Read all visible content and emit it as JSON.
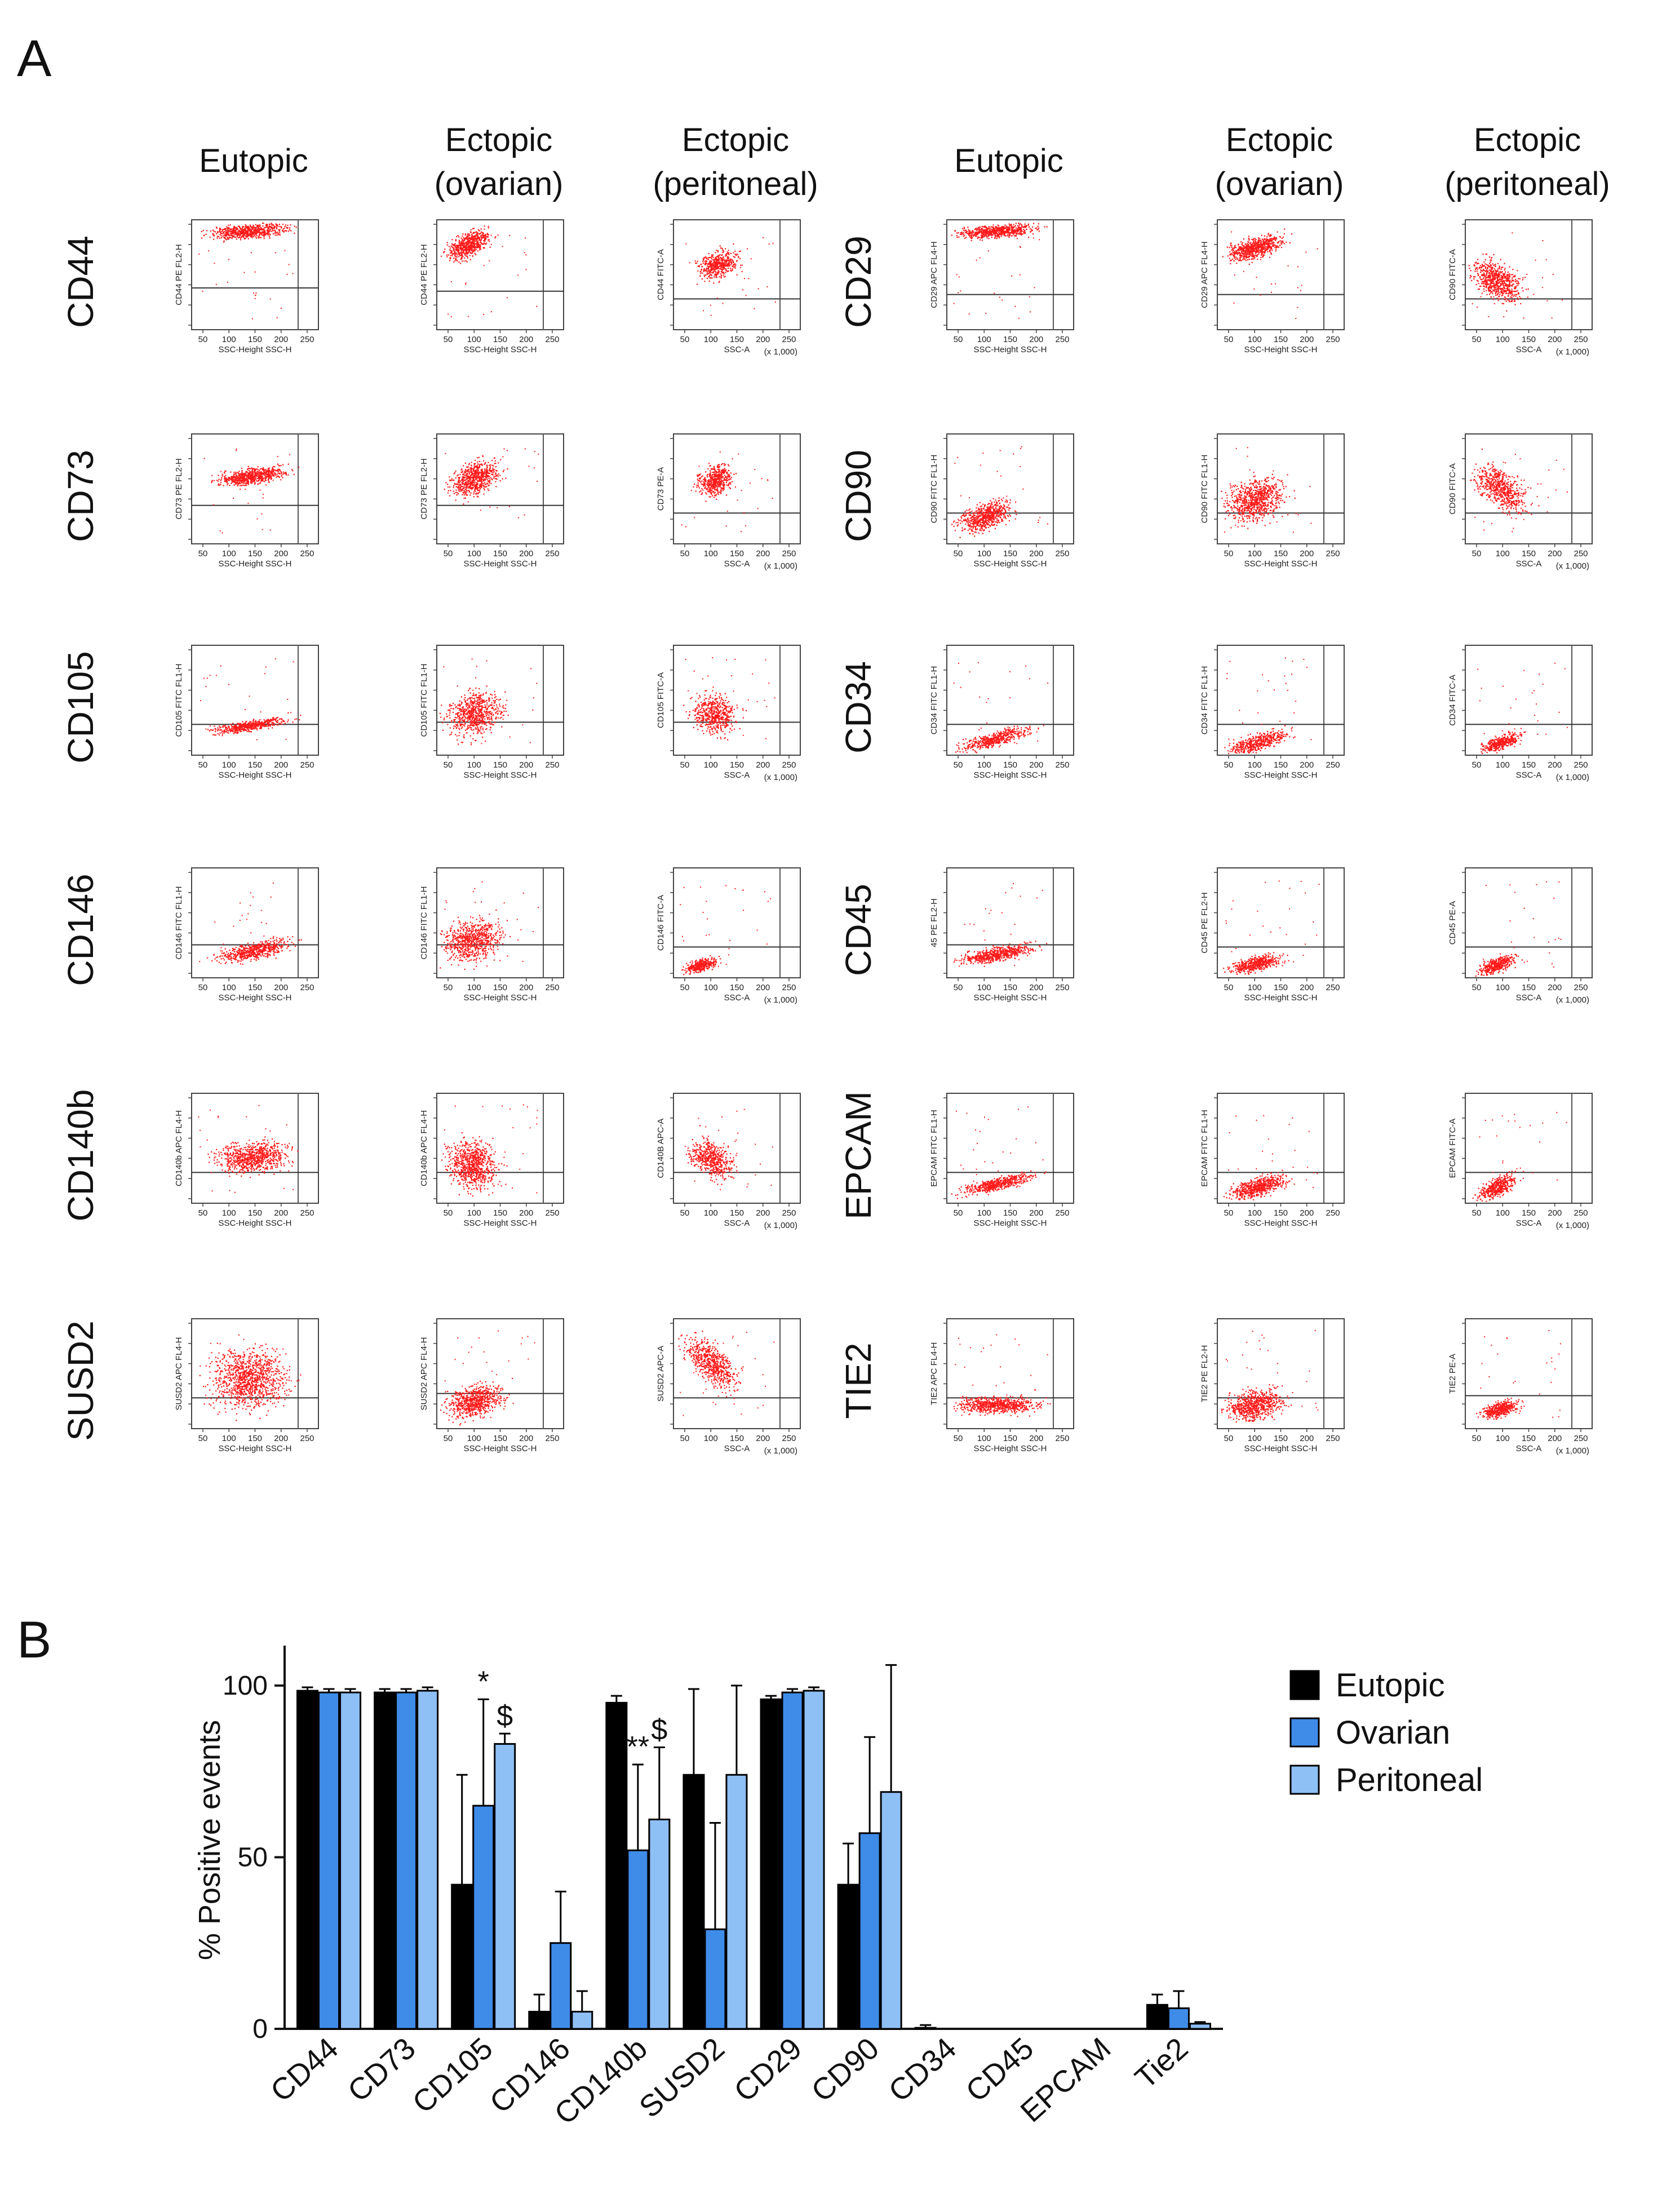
{
  "panelA": {
    "letter": "A",
    "column_headers": [
      [
        "Eutopic"
      ],
      [
        "Ectopic",
        "(ovarian)"
      ],
      [
        "Ectopic",
        "(peritoneal)"
      ],
      [
        "Eutopic"
      ],
      [
        "Ectopic",
        "(ovarian)"
      ],
      [
        "Ectopic",
        "(peritoneal)"
      ]
    ],
    "rows_left": [
      "CD44",
      "CD73",
      "CD105",
      "CD146",
      "CD140b",
      "SUSD2"
    ],
    "rows_right": [
      "CD29",
      "CD90",
      "CD34",
      "CD45",
      "EPCAM",
      "TIE2"
    ],
    "xlabel_height": "SSC-Height SSC-H",
    "xlabel_area": "SSC-A",
    "scale_label": "(x 1,000)",
    "x_ticks": [
      "50",
      "100",
      "150",
      "200",
      "250"
    ],
    "y_labels": {
      "CD44": [
        "CD44 PE FL2-H",
        "CD44 PE FL2-H",
        "CD44 FITC-A"
      ],
      "CD73": [
        "CD73 PE FL2-H",
        "CD73 PE FL2-H",
        "CD73 PE-A"
      ],
      "CD105": [
        "CD105 FITC FL1-H",
        "CD105 FITC FL1-H",
        "CD105 FITC-A"
      ],
      "CD146": [
        "CD146 FITC FL1-H",
        "CD146 FITC FL1-H",
        "CD146 FITC-A"
      ],
      "CD140b": [
        "CD140b APC FL4-H",
        "CD140b APC FL4-H",
        "CD140B APC-A"
      ],
      "SUSD2": [
        "SUSD2 APC FL4-H",
        "SUSD2 APC FL4-H",
        "SUSD2 APC-A"
      ],
      "CD29": [
        "CD29 APC FL4-H",
        "CD29 APC FL4-H",
        "CD90 FITC-A"
      ],
      "CD90": [
        "CD90 FITC FL1-H",
        "CD90 FITC FL1-H",
        "CD90 FITC-A"
      ],
      "CD34": [
        "CD34 FITC FL1-H",
        "CD34 FITC FL1-H",
        "CD34 FITC-A"
      ],
      "CD45": [
        "45 PE FL2-H",
        "CD45 PE FL2-H",
        "CD45 PE-A"
      ],
      "EPCAM": [
        "EPCAM FITC FL1-H",
        "EPCAM FITC FL1-H",
        "EPCAM FITC-A"
      ],
      "TIE2": [
        "TIE2 APC FL4-H",
        "TIE2 PE FL2-H",
        "TIE2 PE-A"
      ]
    },
    "dot_color": "#ff1a1a"
  },
  "panelB": {
    "letter": "B"
  },
  "chart_data": {
    "type": "bar",
    "title": "",
    "xlabel": "",
    "ylabel": "% Positive events",
    "ylim": [
      0,
      110
    ],
    "yticks": [
      0,
      50,
      100
    ],
    "categories": [
      "CD44",
      "CD73",
      "CD105",
      "CD146",
      "CD140b",
      "SUSD2",
      "CD29",
      "CD90",
      "CD34",
      "CD45",
      "EPCAM",
      "Tie2"
    ],
    "series": [
      {
        "name": "Eutopic",
        "color": "#000000",
        "values": [
          98.5,
          98.0,
          42.0,
          5.0,
          95.0,
          74.0,
          96.0,
          42.0,
          0.3,
          0,
          0,
          7.0
        ],
        "errors": [
          1.0,
          1.0,
          32.0,
          5.0,
          2.0,
          25.0,
          1.0,
          12.0,
          0.8,
          0,
          0,
          3.0
        ]
      },
      {
        "name": "Ovarian",
        "color": "#3f8be8",
        "values": [
          98.0,
          98.0,
          65.0,
          25.0,
          52.0,
          29.0,
          98.0,
          57.0,
          0,
          0,
          0,
          6.0
        ],
        "errors": [
          1.0,
          1.0,
          31.0,
          15.0,
          25.0,
          31.0,
          1.0,
          28.0,
          0,
          0,
          0,
          5.0
        ]
      },
      {
        "name": "Peritoneal",
        "color": "#8ebff5",
        "values": [
          98.0,
          98.5,
          83.0,
          5.0,
          61.0,
          74.0,
          98.5,
          69.0,
          0,
          0,
          0,
          1.5
        ],
        "errors": [
          1.0,
          1.0,
          3.0,
          6.0,
          21.0,
          26.0,
          1.0,
          37.0,
          0,
          0,
          0,
          0.5
        ]
      }
    ],
    "annotations": [
      {
        "category": "CD105",
        "series": "Ovarian",
        "text": "*"
      },
      {
        "category": "CD105",
        "series": "Peritoneal",
        "text": "$"
      },
      {
        "category": "CD140b",
        "series": "Ovarian",
        "text": "**"
      },
      {
        "category": "CD140b",
        "series": "Peritoneal",
        "text": "$"
      }
    ],
    "legend": {
      "placement": "top-right",
      "entries": [
        "Eutopic",
        "Ovarian",
        "Peritoneal"
      ]
    }
  }
}
